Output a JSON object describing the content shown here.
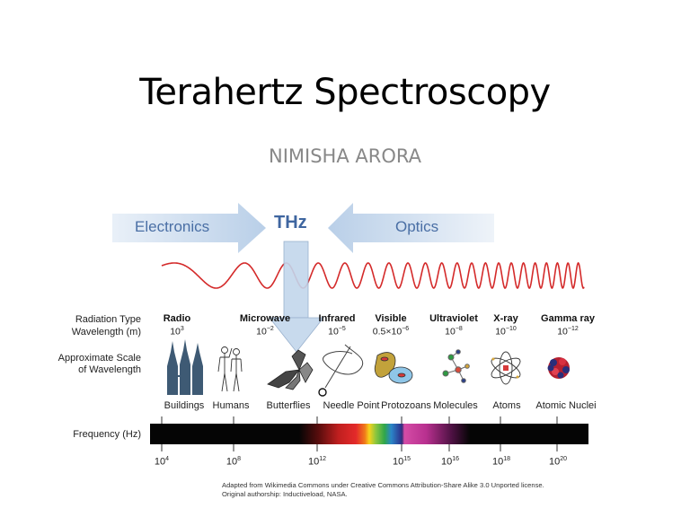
{
  "slide": {
    "title": "Terahertz Spectroscopy",
    "subtitle": "NIMISHA ARORA"
  },
  "figure": {
    "arrows": {
      "left_label": "Electronics",
      "center_label": "THz",
      "right_label": "Optics"
    },
    "row_labels": {
      "radiation_type": "Radiation Type",
      "wavelength": "Wavelength (m)",
      "scale_line1": "Approximate Scale",
      "scale_line2": "of Wavelength",
      "frequency": "Frequency (Hz)"
    },
    "bands": [
      {
        "type": "Radio",
        "wavelength_base": "10",
        "wavelength_exp": "3",
        "scale": "Buildings",
        "icon": "buildings-icon"
      },
      {
        "type": "Microwave",
        "wavelength_base": "10",
        "wavelength_exp": "−2",
        "scale": "Humans",
        "icon": "humans-icon"
      },
      {
        "type": "Infrared",
        "wavelength_base": "10",
        "wavelength_exp": "−5",
        "scale": "Butterflies",
        "icon": "butterfly-icon"
      },
      {
        "type": "Visible",
        "wavelength_base": "0.5×10",
        "wavelength_exp": "−6",
        "scale": "Needle Point",
        "icon": "needle-icon"
      },
      {
        "type": "Ultraviolet",
        "wavelength_base": "10",
        "wavelength_exp": "−8",
        "scale": "Protozoans",
        "icon": "protozoa-icon"
      },
      {
        "type": "X-ray",
        "wavelength_base": "10",
        "wavelength_exp": "−10",
        "scale": "Molecules",
        "icon": "molecule-icon"
      },
      {
        "type": "Gamma ray",
        "wavelength_base": "10",
        "wavelength_exp": "−12",
        "scale": "Atoms",
        "icon": "atom-icon"
      }
    ],
    "extra_scale": {
      "scale": "Atomic Nuclei",
      "icon": "nucleus-icon"
    },
    "frequency_ticks": [
      {
        "base": "10",
        "exp": "4"
      },
      {
        "base": "10",
        "exp": "8"
      },
      {
        "base": "10",
        "exp": "12"
      },
      {
        "base": "10",
        "exp": "15"
      },
      {
        "base": "10",
        "exp": "16"
      },
      {
        "base": "10",
        "exp": "18"
      },
      {
        "base": "10",
        "exp": "20"
      }
    ],
    "credit_line1": "Adapted from Wikimedia Commons under Creative Commons Attribution-Share Alike 3.0 Unported license.",
    "credit_line2": "Original authorship: Inductiveload, NASA.",
    "colors": {
      "arrow_fill": "#c3d6ec",
      "arrow_text": "#4a6fa5",
      "wave": "#d42a2a",
      "building": "#3e5a74"
    }
  }
}
